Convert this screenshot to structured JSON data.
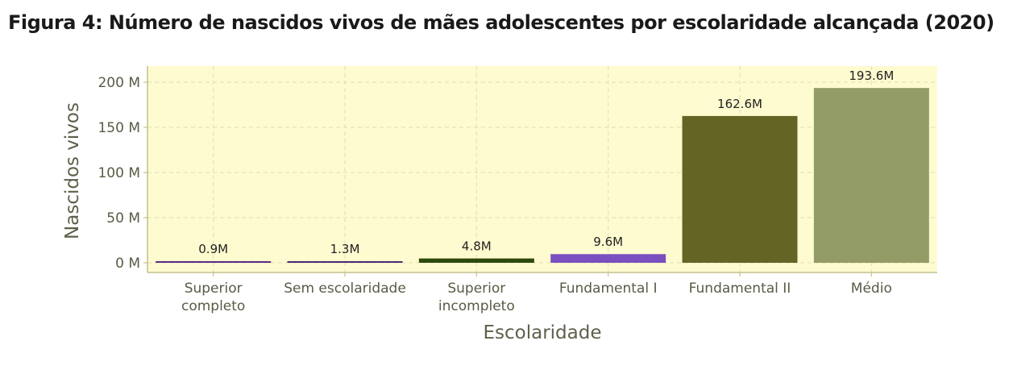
{
  "chart_data": {
    "type": "bar",
    "title": "Figura 4: Número de nascidos vivos de mães adolescentes por escolaridade alcançada (2020)",
    "xlabel": "Escolaridade",
    "ylabel": "Nascidos vivos",
    "categories": [
      "Superior completo",
      "Sem escolaridade",
      "Superior incompleto",
      "Fundamental I",
      "Fundamental II",
      "Médio"
    ],
    "category_lines": [
      [
        "Superior",
        "completo"
      ],
      [
        "Sem escolaridade"
      ],
      [
        "Superior",
        "incompleto"
      ],
      [
        "Fundamental I"
      ],
      [
        "Fundamental II"
      ],
      [
        "Médio"
      ]
    ],
    "values": [
      0.9,
      1.3,
      4.8,
      9.6,
      162.6,
      193.6
    ],
    "value_labels": [
      "0.9M",
      "1.3M",
      "4.8M",
      "9.6M",
      "162.6M",
      "193.6M"
    ],
    "colors": [
      "#5b2d86",
      "#4a2a73",
      "#2d4a0e",
      "#7a4fbf",
      "#646424",
      "#939b66"
    ],
    "yticks": [
      0,
      50,
      100,
      150,
      200
    ],
    "ytick_labels": [
      "0 M",
      "50 M",
      "100 M",
      "150 M",
      "200 M"
    ],
    "ylim": [
      -3,
      218
    ],
    "grid": true,
    "panel_background": "#fffbd0",
    "grid_color": "#e6e2b8",
    "axis_color": "#c4c08a"
  }
}
